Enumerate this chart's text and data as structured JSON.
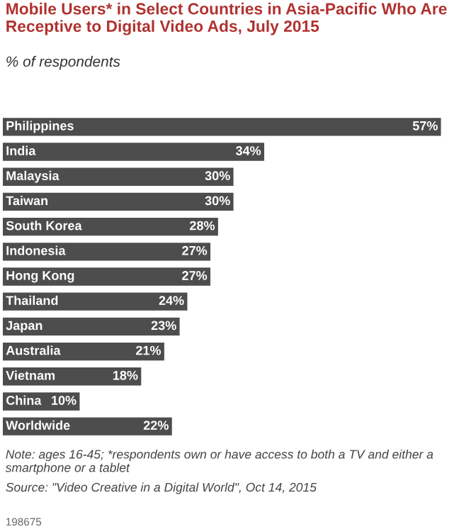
{
  "chart_data": {
    "type": "bar",
    "orientation": "horizontal",
    "title": "Mobile Users* in Select Countries in Asia-Pacific Who Are Receptive to Digital Video Ads, July 2015",
    "subtitle": "% of respondents",
    "categories": [
      "Philippines",
      "India",
      "Malaysia",
      "Taiwan",
      "South Korea",
      "Indonesia",
      "Hong Kong",
      "Thailand",
      "Japan",
      "Australia",
      "Vietnam",
      "China",
      "Worldwide"
    ],
    "values": [
      57,
      34,
      30,
      30,
      28,
      27,
      27,
      24,
      23,
      21,
      18,
      10,
      22
    ],
    "value_labels": [
      "57%",
      "34%",
      "30%",
      "30%",
      "28%",
      "27%",
      "27%",
      "24%",
      "23%",
      "21%",
      "18%",
      "10%",
      "22%"
    ],
    "color": "#4d4d4d",
    "annotations": [
      "Note: ages 16-45; *respondents own or have access to both a TV and either a smartphone or a tablet",
      "Source: \"Video Creative in a Digital World\", Oct 14, 2015",
      "198675"
    ]
  }
}
